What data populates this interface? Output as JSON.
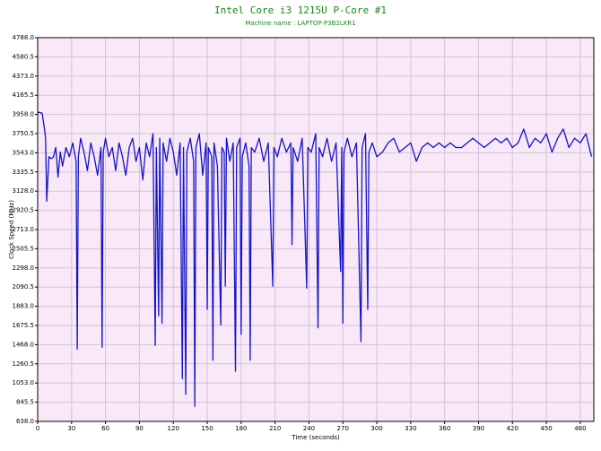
{
  "chart_data": {
    "type": "line",
    "title": "Intel Core i3 1215U P-Core #1",
    "subtitle": "Machine name : LAPTOP-P3B2LKR1",
    "x_label": "Time (seconds)",
    "y_label": "Clock Speed (MHz)",
    "color": "#1414c8",
    "background": "#f8e8f8",
    "grid": true,
    "xlim": [
      0,
      492
    ],
    "xticks": [
      0,
      30,
      60,
      90,
      120,
      150,
      180,
      210,
      240,
      270,
      300,
      330,
      360,
      390,
      420,
      450,
      480
    ],
    "ylim": [
      638,
      4788
    ],
    "yticks": [
      {
        "value": 638,
        "label": "638.0"
      },
      {
        "value": 845.5,
        "label": "845.5"
      },
      {
        "value": 1053,
        "label": "1053.0"
      },
      {
        "value": 1260.5,
        "label": "1260.5"
      },
      {
        "value": 1468,
        "label": "1468.0"
      },
      {
        "value": 1675.5,
        "label": "1675.5"
      },
      {
        "value": 1883,
        "label": "1883.0"
      },
      {
        "value": 2090.5,
        "label": "2090.5"
      },
      {
        "value": 2298,
        "label": "2298.0"
      },
      {
        "value": 2505.5,
        "label": "2505.5"
      },
      {
        "value": 2713,
        "label": "2713.0"
      },
      {
        "value": 2920.5,
        "label": "2920.5"
      },
      {
        "value": 3128,
        "label": "3128.0"
      },
      {
        "value": 3335.5,
        "label": "3335.5"
      },
      {
        "value": 3543,
        "label": "3543.0"
      },
      {
        "value": 3750.5,
        "label": "3750.5"
      },
      {
        "value": 3958,
        "label": "3958.0"
      },
      {
        "value": 4165.5,
        "label": "4165.5"
      },
      {
        "value": 4373,
        "label": "4373.0"
      },
      {
        "value": 4580.5,
        "label": "4580.5"
      },
      {
        "value": 4788,
        "label": "4788.0"
      }
    ],
    "x": [
      0,
      2,
      4,
      6,
      7,
      8,
      10,
      12,
      14,
      16,
      18,
      20,
      22,
      25,
      28,
      31,
      34,
      35,
      36,
      38,
      41,
      44,
      47,
      50,
      53,
      56,
      57,
      58,
      60,
      63,
      66,
      69,
      72,
      75,
      78,
      81,
      84,
      87,
      90,
      93,
      96,
      99,
      102,
      104,
      105,
      107,
      108,
      110,
      111,
      114,
      117,
      120,
      123,
      126,
      128,
      129,
      131,
      132,
      135,
      138,
      139,
      140,
      143,
      146,
      149,
      150,
      151,
      154,
      155,
      156,
      159,
      162,
      163,
      165,
      166,
      167,
      170,
      173,
      175,
      176,
      179,
      180,
      181,
      184,
      187,
      188,
      189,
      192,
      196,
      200,
      204,
      208,
      209,
      212,
      216,
      220,
      224,
      225,
      226,
      230,
      234,
      238,
      239,
      242,
      246,
      248,
      249,
      252,
      256,
      260,
      264,
      268,
      269,
      270,
      271,
      274,
      278,
      282,
      286,
      287,
      290,
      292,
      293,
      296,
      300,
      305,
      310,
      315,
      320,
      325,
      330,
      335,
      340,
      345,
      350,
      355,
      360,
      365,
      370,
      375,
      380,
      385,
      390,
      395,
      400,
      405,
      410,
      415,
      420,
      425,
      430,
      435,
      440,
      445,
      450,
      455,
      460,
      465,
      470,
      475,
      480,
      485,
      490
    ],
    "values": [
      3980,
      3980,
      3970,
      3800,
      3700,
      3020,
      3500,
      3480,
      3500,
      3600,
      3280,
      3550,
      3400,
      3600,
      3500,
      3650,
      3450,
      1420,
      3500,
      3700,
      3550,
      3350,
      3650,
      3500,
      3300,
      3600,
      1440,
      3550,
      3700,
      3500,
      3600,
      3350,
      3650,
      3500,
      3300,
      3600,
      3700,
      3450,
      3600,
      3250,
      3650,
      3500,
      3750,
      1460,
      3600,
      1780,
      3700,
      1700,
      3650,
      3450,
      3700,
      3550,
      3300,
      3650,
      1100,
      3600,
      930,
      3550,
      3700,
      3450,
      800,
      3600,
      3750,
      3300,
      3650,
      1850,
      3600,
      3500,
      1300,
      3650,
      3400,
      1680,
      3600,
      3550,
      2100,
      3700,
      3450,
      3650,
      1180,
      3600,
      3700,
      1580,
      3500,
      3650,
      3400,
      1300,
      3600,
      3550,
      3700,
      3450,
      3650,
      2100,
      3600,
      3500,
      3700,
      3550,
      3650,
      2550,
      3600,
      3450,
      3700,
      2080,
      3600,
      3550,
      3750,
      1650,
      3600,
      3500,
      3700,
      3450,
      3650,
      2260,
      3600,
      1700,
      3550,
      3700,
      3500,
      3650,
      1500,
      3600,
      3750,
      1850,
      3550,
      3650,
      3500,
      3550,
      3650,
      3700,
      3550,
      3600,
      3650,
      3450,
      3600,
      3650,
      3600,
      3650,
      3600,
      3650,
      3600,
      3600,
      3650,
      3700,
      3650,
      3600,
      3650,
      3700,
      3650,
      3700,
      3600,
      3650,
      3800,
      3600,
      3700,
      3650,
      3750,
      3550,
      3700,
      3800,
      3600,
      3700,
      3650,
      3750,
      3500
    ]
  }
}
